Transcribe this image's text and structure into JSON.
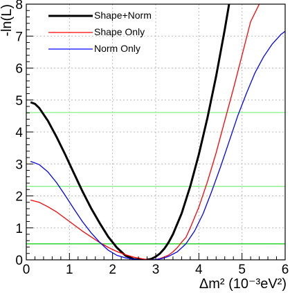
{
  "chart_data": {
    "type": "line",
    "xlabel": "Δm² (10⁻³eV²)",
    "ylabel": "-ln(L)",
    "xlim": [
      0,
      6
    ],
    "ylim": [
      0,
      8
    ],
    "x_ticks": [
      0,
      1,
      2,
      3,
      4,
      5,
      6
    ],
    "y_ticks": [
      0,
      1,
      2,
      3,
      4,
      5,
      6,
      7,
      8
    ],
    "x_tick_labels": [
      "0",
      "1",
      "2",
      "3",
      "4",
      "5",
      "6"
    ],
    "y_tick_labels": [
      "0",
      "1",
      "2",
      "3",
      "4",
      "5",
      "6",
      "7",
      "8"
    ],
    "grid": true,
    "legend_position": "top-left",
    "reference_lines": [
      {
        "y": 0.5,
        "color": "#00cc00"
      },
      {
        "y": 2.3,
        "color": "#7df07d"
      },
      {
        "y": 4.61,
        "color": "#7df07d"
      }
    ],
    "series": [
      {
        "name": "Shape+Norm",
        "color": "#000000",
        "width": 3,
        "x": [
          0.1,
          0.2,
          0.3,
          0.5,
          0.7,
          0.9,
          1.1,
          1.3,
          1.5,
          1.7,
          1.9,
          2.1,
          2.3,
          2.5,
          2.7,
          2.8,
          2.9,
          3.0,
          3.1,
          3.2,
          3.3,
          3.4,
          3.6,
          3.8,
          4.0,
          4.2,
          4.4,
          4.6,
          4.7
        ],
        "y": [
          4.93,
          4.88,
          4.75,
          4.35,
          3.85,
          3.3,
          2.72,
          2.15,
          1.62,
          1.15,
          0.72,
          0.38,
          0.13,
          0.02,
          0.0,
          0.0,
          0.03,
          0.1,
          0.2,
          0.35,
          0.55,
          0.8,
          1.45,
          2.3,
          3.3,
          4.45,
          5.75,
          7.2,
          8.0
        ]
      },
      {
        "name": "Shape Only",
        "color": "#ff0000",
        "width": 1.3,
        "x": [
          0.1,
          0.3,
          0.5,
          0.7,
          0.9,
          1.1,
          1.3,
          1.5,
          1.7,
          1.9,
          2.1,
          2.3,
          2.5,
          2.7,
          2.8,
          2.9,
          3.0,
          3.1,
          3.2,
          3.3,
          3.4,
          3.5,
          3.6,
          3.7,
          3.8,
          4.0,
          4.2,
          4.4,
          4.6,
          4.8,
          5.0,
          5.2,
          5.4
        ],
        "y": [
          1.87,
          1.8,
          1.66,
          1.5,
          1.3,
          1.1,
          0.9,
          0.72,
          0.54,
          0.39,
          0.26,
          0.16,
          0.08,
          0.03,
          0.01,
          0.0,
          0.01,
          0.04,
          0.09,
          0.15,
          0.25,
          0.38,
          0.55,
          0.7,
          1.0,
          1.65,
          2.45,
          3.35,
          4.35,
          5.35,
          6.4,
          7.45,
          8.0
        ]
      },
      {
        "name": "Norm Only",
        "color": "#0000ff",
        "width": 1.3,
        "x": [
          0.1,
          0.3,
          0.5,
          0.7,
          0.9,
          1.1,
          1.3,
          1.5,
          1.7,
          1.9,
          2.1,
          2.3,
          2.5,
          2.7,
          2.8,
          2.9,
          3.0,
          3.1,
          3.2,
          3.3,
          3.5,
          3.7,
          3.9,
          4.1,
          4.3,
          4.5,
          4.7,
          4.9,
          5.1,
          5.3,
          5.5,
          5.7,
          5.9,
          6.0
        ],
        "y": [
          3.08,
          2.98,
          2.75,
          2.42,
          2.02,
          1.6,
          1.2,
          0.85,
          0.55,
          0.3,
          0.14,
          0.06,
          0.02,
          0.0,
          0.0,
          0.0,
          0.01,
          0.03,
          0.06,
          0.11,
          0.25,
          0.5,
          0.9,
          1.45,
          2.15,
          2.9,
          3.7,
          4.5,
          5.2,
          5.85,
          6.35,
          6.75,
          7.05,
          7.15
        ]
      }
    ]
  }
}
